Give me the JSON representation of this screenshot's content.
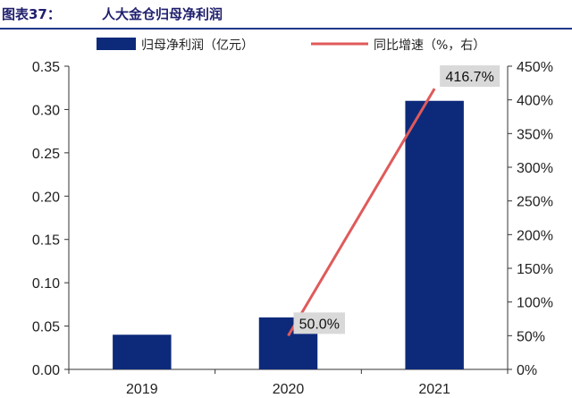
{
  "header": {
    "prefix": "图表37：",
    "title": "人大金仓归母净利润"
  },
  "colors": {
    "bar": "#0d2a7a",
    "line": "#e05a5a",
    "label_bg": "#d9d9d9",
    "title": "#1f1f6e"
  },
  "chart_data": {
    "type": "bar",
    "categories": [
      "2019",
      "2020",
      "2021"
    ],
    "series": [
      {
        "name": "归母净利润（亿元）",
        "type": "bar",
        "axis": "left",
        "values": [
          0.04,
          0.06,
          0.31
        ]
      },
      {
        "name": "同比增速（%，右）",
        "type": "line",
        "axis": "right",
        "values": [
          null,
          50.0,
          416.7
        ],
        "data_labels": [
          "",
          "50.0%",
          "416.7%"
        ]
      }
    ],
    "y_left": {
      "min": 0,
      "max": 0.35,
      "ticks": [
        "0.00",
        "0.05",
        "0.10",
        "0.15",
        "0.20",
        "0.25",
        "0.30",
        "0.35"
      ]
    },
    "y_right": {
      "min": 0,
      "max": 450,
      "ticks": [
        "0%",
        "50%",
        "100%",
        "150%",
        "200%",
        "250%",
        "300%",
        "350%",
        "400%",
        "450%"
      ]
    },
    "legend_position": "top",
    "grid": false
  }
}
